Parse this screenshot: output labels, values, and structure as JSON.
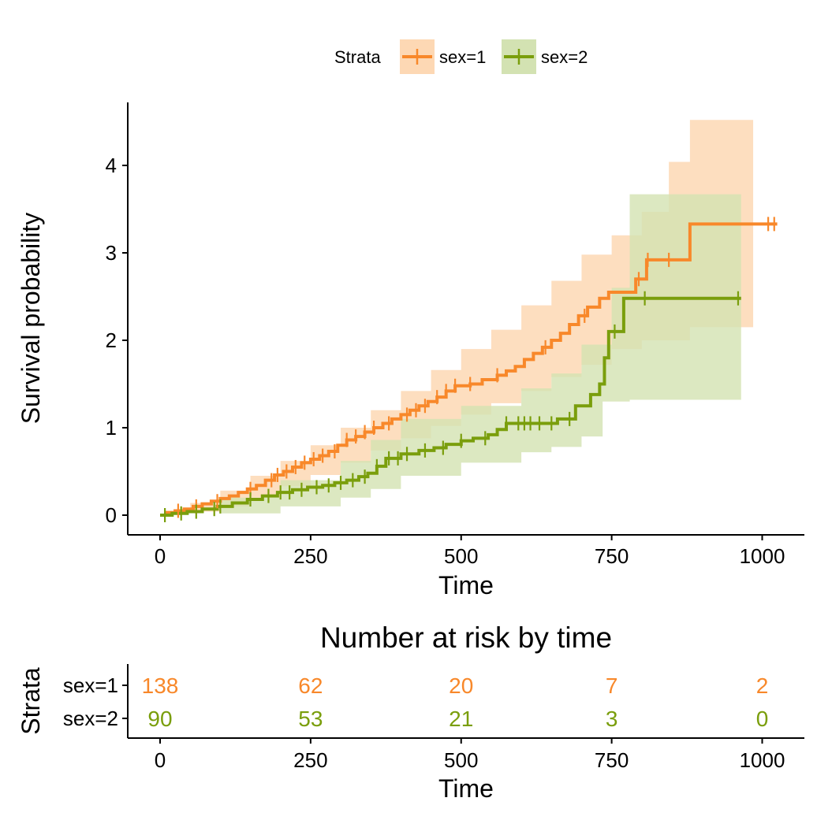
{
  "colors": {
    "s1": "#F8882A",
    "s2": "#7A9E0C",
    "s1_band": "#FDD8B4",
    "s2_band": "#D3E2B2",
    "axis": "#000000"
  },
  "legend": {
    "title": "Strata",
    "items": [
      "sex=1",
      "sex=2"
    ]
  },
  "chart_data": [
    {
      "type": "line",
      "xlabel": "Time",
      "ylabel": "Survival probability",
      "xlim": [
        -100,
        1070
      ],
      "ylim": [
        -0.2,
        4.72
      ],
      "x_ticks": [
        "0",
        "250",
        "500",
        "750",
        "1000"
      ],
      "x_tick_values": [
        0,
        250,
        500,
        750,
        1000
      ],
      "y_ticks": [
        "0",
        "1",
        "2",
        "3",
        "4"
      ],
      "y_tick_values": [
        0,
        1,
        2,
        3,
        4
      ],
      "legend_position": "top",
      "series": [
        {
          "name": "sex=1",
          "steps": [
            [
              0,
              0
            ],
            [
              10,
              0.03
            ],
            [
              25,
              0.05
            ],
            [
              40,
              0.07
            ],
            [
              55,
              0.1
            ],
            [
              70,
              0.13
            ],
            [
              85,
              0.16
            ],
            [
              100,
              0.19
            ],
            [
              115,
              0.22
            ],
            [
              130,
              0.26
            ],
            [
              145,
              0.3
            ],
            [
              160,
              0.34
            ],
            [
              175,
              0.4
            ],
            [
              190,
              0.46
            ],
            [
              205,
              0.5
            ],
            [
              220,
              0.55
            ],
            [
              235,
              0.6
            ],
            [
              250,
              0.64
            ],
            [
              265,
              0.68
            ],
            [
              280,
              0.73
            ],
            [
              295,
              0.8
            ],
            [
              310,
              0.86
            ],
            [
              325,
              0.9
            ],
            [
              340,
              0.95
            ],
            [
              355,
              1.0
            ],
            [
              370,
              1.05
            ],
            [
              385,
              1.1
            ],
            [
              400,
              1.15
            ],
            [
              415,
              1.2
            ],
            [
              430,
              1.25
            ],
            [
              445,
              1.3
            ],
            [
              460,
              1.35
            ],
            [
              475,
              1.42
            ],
            [
              490,
              1.48
            ],
            [
              515,
              1.5
            ],
            [
              535,
              1.55
            ],
            [
              560,
              1.6
            ],
            [
              575,
              1.65
            ],
            [
              590,
              1.7
            ],
            [
              605,
              1.78
            ],
            [
              620,
              1.85
            ],
            [
              635,
              1.92
            ],
            [
              650,
              2.0
            ],
            [
              665,
              2.08
            ],
            [
              680,
              2.18
            ],
            [
              695,
              2.28
            ],
            [
              710,
              2.38
            ],
            [
              730,
              2.48
            ],
            [
              745,
              2.55
            ],
            [
              790,
              2.7
            ],
            [
              808,
              2.92
            ],
            [
              880,
              3.33
            ],
            [
              1025,
              3.33
            ]
          ],
          "upper": [
            [
              0,
              0
            ],
            [
              50,
              0.14
            ],
            [
              100,
              0.28
            ],
            [
              150,
              0.45
            ],
            [
              200,
              0.62
            ],
            [
              250,
              0.8
            ],
            [
              300,
              1.0
            ],
            [
              350,
              1.2
            ],
            [
              400,
              1.42
            ],
            [
              450,
              1.66
            ],
            [
              500,
              1.9
            ],
            [
              550,
              2.12
            ],
            [
              600,
              2.4
            ],
            [
              650,
              2.68
            ],
            [
              700,
              2.98
            ],
            [
              750,
              3.2
            ],
            [
              800,
              3.47
            ],
            [
              845,
              4.04
            ],
            [
              880,
              4.52
            ],
            [
              985,
              4.52
            ]
          ],
          "lower": [
            [
              0,
              0
            ],
            [
              50,
              0.04
            ],
            [
              100,
              0.1
            ],
            [
              150,
              0.2
            ],
            [
              200,
              0.33
            ],
            [
              250,
              0.46
            ],
            [
              300,
              0.6
            ],
            [
              350,
              0.74
            ],
            [
              400,
              0.88
            ],
            [
              450,
              1.02
            ],
            [
              500,
              1.15
            ],
            [
              550,
              1.28
            ],
            [
              600,
              1.42
            ],
            [
              650,
              1.58
            ],
            [
              700,
              1.72
            ],
            [
              750,
              1.9
            ],
            [
              800,
              2.0
            ],
            [
              880,
              2.15
            ],
            [
              985,
              2.15
            ]
          ],
          "censor_times": [
            30,
            60,
            95,
            150,
            185,
            195,
            210,
            225,
            240,
            255,
            270,
            290,
            310,
            325,
            340,
            355,
            380,
            410,
            425,
            440,
            460,
            475,
            490,
            515,
            560,
            640,
            705,
            795,
            810,
            845,
            1010,
            1020
          ]
        },
        {
          "name": "sex=2",
          "steps": [
            [
              0,
              0
            ],
            [
              20,
              0.02
            ],
            [
              45,
              0.04
            ],
            [
              70,
              0.07
            ],
            [
              95,
              0.1
            ],
            [
              120,
              0.14
            ],
            [
              145,
              0.18
            ],
            [
              170,
              0.22
            ],
            [
              195,
              0.26
            ],
            [
              220,
              0.29
            ],
            [
              245,
              0.32
            ],
            [
              270,
              0.34
            ],
            [
              290,
              0.37
            ],
            [
              310,
              0.4
            ],
            [
              330,
              0.44
            ],
            [
              345,
              0.48
            ],
            [
              360,
              0.56
            ],
            [
              375,
              0.65
            ],
            [
              400,
              0.7
            ],
            [
              430,
              0.74
            ],
            [
              455,
              0.77
            ],
            [
              475,
              0.81
            ],
            [
              500,
              0.85
            ],
            [
              520,
              0.88
            ],
            [
              545,
              0.92
            ],
            [
              560,
              0.98
            ],
            [
              575,
              1.05
            ],
            [
              660,
              1.1
            ],
            [
              690,
              1.25
            ],
            [
              715,
              1.38
            ],
            [
              730,
              1.5
            ],
            [
              738,
              1.8
            ],
            [
              745,
              2.1
            ],
            [
              770,
              2.48
            ],
            [
              965,
              2.48
            ]
          ],
          "upper": [
            [
              0,
              0
            ],
            [
              100,
              0.2
            ],
            [
              200,
              0.4
            ],
            [
              300,
              0.62
            ],
            [
              350,
              0.86
            ],
            [
              400,
              1.1
            ],
            [
              500,
              1.25
            ],
            [
              600,
              1.45
            ],
            [
              650,
              1.62
            ],
            [
              700,
              1.95
            ],
            [
              750,
              2.6
            ],
            [
              780,
              3.67
            ],
            [
              965,
              3.67
            ]
          ],
          "lower": [
            [
              0,
              0
            ],
            [
              100,
              0.02
            ],
            [
              200,
              0.1
            ],
            [
              300,
              0.2
            ],
            [
              350,
              0.3
            ],
            [
              400,
              0.45
            ],
            [
              500,
              0.6
            ],
            [
              600,
              0.72
            ],
            [
              650,
              0.78
            ],
            [
              700,
              0.9
            ],
            [
              735,
              1.3
            ],
            [
              780,
              1.32
            ],
            [
              965,
              1.32
            ]
          ],
          "censor_times": [
            8,
            35,
            60,
            90,
            100,
            150,
            180,
            200,
            215,
            235,
            260,
            280,
            300,
            320,
            340,
            360,
            380,
            395,
            410,
            440,
            470,
            500,
            540,
            575,
            595,
            605,
            615,
            630,
            650,
            680,
            755,
            805,
            960
          ]
        }
      ]
    },
    {
      "type": "table",
      "title": "Number at risk by time",
      "xlabel": "Time",
      "ylabel": "Strata",
      "x_ticks": [
        "0",
        "250",
        "500",
        "750",
        "1000"
      ],
      "x_tick_values": [
        0,
        250,
        500,
        750,
        1000
      ],
      "rows": [
        {
          "name": "sex=1",
          "values": [
            "138",
            "62",
            "20",
            "7",
            "2"
          ]
        },
        {
          "name": "sex=2",
          "values": [
            "90",
            "53",
            "21",
            "3",
            "0"
          ]
        }
      ]
    }
  ]
}
